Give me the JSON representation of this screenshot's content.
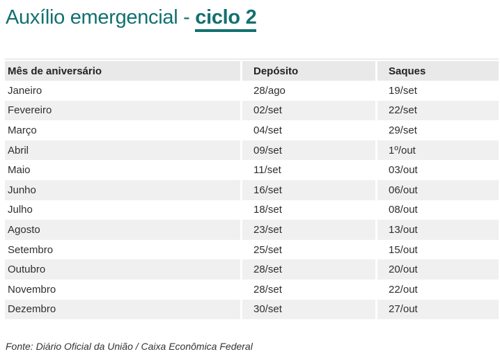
{
  "title": {
    "prefix": "Auxílio emergencial - ",
    "highlight": "ciclo 2"
  },
  "chart_data": {
    "type": "table",
    "title": "Auxílio emergencial - ciclo 2",
    "columns": [
      "Mês de aniversário",
      "Depósito",
      "Saques"
    ],
    "rows": [
      [
        "Janeiro",
        "28/ago",
        "19/set"
      ],
      [
        "Fevereiro",
        "02/set",
        "22/set"
      ],
      [
        "Março",
        "04/set",
        "29/set"
      ],
      [
        "Abril",
        "09/set",
        "1º/out"
      ],
      [
        "Maio",
        "11/set",
        "03/out"
      ],
      [
        "Junho",
        "16/set",
        "06/out"
      ],
      [
        "Julho",
        "18/set",
        "08/out"
      ],
      [
        "Agosto",
        "23/set",
        "13/out"
      ],
      [
        "Setembro",
        "25/set",
        "15/out"
      ],
      [
        "Outubro",
        "28/set",
        "20/out"
      ],
      [
        "Novembro",
        "28/set",
        "22/out"
      ],
      [
        "Dezembro",
        "30/set",
        "27/out"
      ]
    ],
    "source": "Fonte: Diário Oficial da União / Caixa Econômica Federal",
    "layout": {
      "striped": true,
      "legend_position": "none",
      "grid": false
    }
  },
  "colors": {
    "accent": "#127070",
    "header_bg": "#e9e9e9",
    "row_alt_bg": "#f0f0f0",
    "text": "#2e2e2e"
  }
}
